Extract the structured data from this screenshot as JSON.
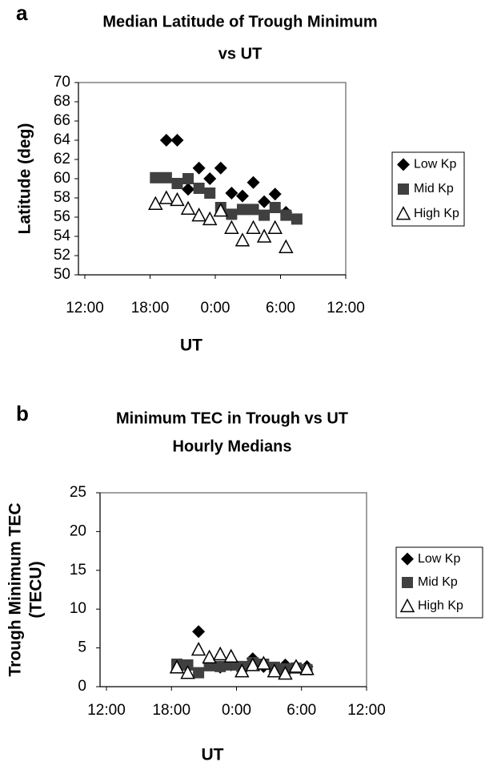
{
  "chart_data": [
    {
      "type": "scatter",
      "panel_label": "a",
      "title": [
        "Median Latitude of Trough Minimum",
        "vs UT"
      ],
      "x_label": "UT",
      "y_label": [
        "Latitude (deg)"
      ],
      "xlim": [
        12,
        36
      ],
      "xticks": [
        {
          "value": 12,
          "label": "12:00"
        },
        {
          "value": 18,
          "label": "18:00"
        },
        {
          "value": 24,
          "label": "0:00"
        },
        {
          "value": 30,
          "label": "6:00"
        },
        {
          "value": 36,
          "label": "12:00"
        }
      ],
      "ylim": [
        50,
        70
      ],
      "yticks": [
        50,
        52,
        54,
        56,
        58,
        60,
        62,
        64,
        66,
        68,
        70
      ],
      "grid": false,
      "legend": "right",
      "series": [
        {
          "name": "Low Kp",
          "color": "#000000",
          "marker": "diamond",
          "x": [
            19.5,
            20.5,
            21.5,
            22.5,
            23.5,
            24.5,
            25.5,
            26.5,
            27.5,
            28.5,
            29.5,
            30.5
          ],
          "values": [
            64,
            64,
            58.9,
            61.1,
            60,
            61.1,
            58.5,
            58.2,
            59.6,
            57.6,
            58.4,
            56.5
          ]
        },
        {
          "name": "Mid Kp",
          "color": "#404040",
          "marker": "square",
          "x": [
            18.5,
            19.5,
            20.5,
            21.5,
            22.5,
            23.5,
            24.5,
            25.5,
            26.5,
            27.5,
            28.5,
            29.5,
            30.5,
            31.5
          ],
          "values": [
            60.1,
            60.1,
            59.5,
            60,
            59,
            58.5,
            57,
            56.3,
            56.8,
            56.8,
            56.2,
            57,
            56.2,
            55.8
          ]
        },
        {
          "name": "High Kp",
          "color": "#000000",
          "marker": "triangle",
          "x": [
            18.5,
            19.5,
            20.5,
            21.5,
            22.5,
            23.5,
            24.5,
            25.5,
            26.5,
            27.5,
            28.5,
            29.5,
            30.5
          ],
          "values": [
            57.4,
            58,
            57.8,
            56.9,
            56.2,
            55.8,
            56.7,
            54.9,
            53.6,
            54.9,
            54,
            54.9,
            52.9
          ]
        }
      ]
    },
    {
      "type": "scatter",
      "panel_label": "b",
      "title": [
        "Minimum TEC in Trough vs UT",
        "Hourly Medians"
      ],
      "x_label": "UT",
      "y_label": [
        "Trough Minimum TEC",
        "(TECU)"
      ],
      "xlim": [
        12,
        36
      ],
      "xticks": [
        {
          "value": 12,
          "label": "12:00"
        },
        {
          "value": 18,
          "label": "18:00"
        },
        {
          "value": 24,
          "label": "0:00"
        },
        {
          "value": 30,
          "label": "6:00"
        },
        {
          "value": 36,
          "label": "12:00"
        }
      ],
      "ylim": [
        0,
        25
      ],
      "yticks": [
        0,
        5,
        10,
        15,
        20,
        25
      ],
      "grid": false,
      "legend": "right",
      "series": [
        {
          "name": "Low Kp",
          "color": "#000000",
          "marker": "diamond",
          "x": [
            20.5,
            21.5,
            22.5,
            23.5,
            24.5,
            25.5,
            26.5,
            27.5,
            28.5,
            29.5,
            30.5
          ],
          "values": [
            7.1,
            3.0,
            2.5,
            2.8,
            2.3,
            3.6,
            2.6,
            2.4,
            2.8,
            2.6,
            2.6
          ]
        },
        {
          "name": "Mid Kp",
          "color": "#404040",
          "marker": "square",
          "x": [
            18.5,
            19.5,
            20.5,
            21.5,
            22.5,
            23.5,
            24.5,
            25.5,
            26.5,
            27.5,
            28.5,
            29.5,
            30.5
          ],
          "values": [
            2.9,
            2.8,
            1.8,
            2.7,
            2.6,
            2.8,
            2.6,
            3.1,
            2.9,
            2.5,
            2.3,
            2.4,
            2.2
          ]
        },
        {
          "name": "High Kp",
          "color": "#000000",
          "marker": "triangle",
          "x": [
            18.5,
            19.5,
            20.5,
            21.5,
            22.5,
            23.5,
            24.5,
            25.5,
            26.5,
            27.5,
            28.5,
            29.5,
            30.5
          ],
          "values": [
            2.5,
            1.8,
            4.8,
            3.8,
            4.2,
            3.9,
            2.0,
            2.8,
            3.0,
            2.0,
            1.7,
            2.6,
            2.3
          ]
        }
      ]
    }
  ]
}
